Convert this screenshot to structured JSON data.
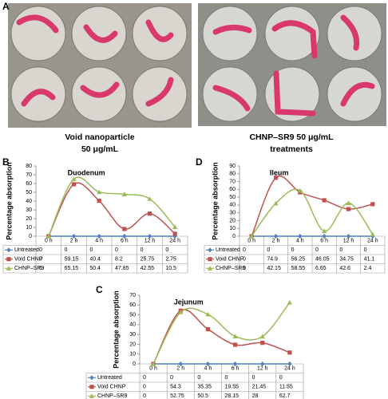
{
  "figure": {
    "panel_labels": [
      "A",
      "B",
      "C",
      "D"
    ],
    "captions": [
      [
        "Void nanoparticle",
        "50 μg/mL"
      ],
      [
        "CHNP–SR9 50 μg/mL",
        "treatments"
      ]
    ]
  },
  "chart_data": [
    {
      "type": "line",
      "title": "Duodenum",
      "y_label": "Percentage absorption",
      "categories": [
        "0 h",
        "2 h",
        "4 h",
        "6 h",
        "12 h",
        "24 h"
      ],
      "series": [
        {
          "name": "Untreated",
          "color": "#4f81bd",
          "marker": "diamond",
          "values": [
            0,
            0,
            0,
            0,
            0,
            0
          ]
        },
        {
          "name": "Void CHNP",
          "color": "#c0504d",
          "marker": "square",
          "values": [
            0,
            59.15,
            40.4,
            8.2,
            25.75,
            2.75
          ]
        },
        {
          "name": "CHNP–SR9",
          "color": "#9bbb59",
          "marker": "triangle",
          "values": [
            0,
            65.15,
            50.4,
            47.85,
            42.55,
            10.5
          ]
        }
      ],
      "ylim": [
        0,
        80
      ],
      "yticks": [
        0,
        10,
        20,
        30,
        40,
        50,
        60,
        70,
        80
      ]
    },
    {
      "type": "line",
      "title": "Ileum",
      "y_label": "Percentage absorption",
      "categories": [
        "0 h",
        "2 h",
        "4 h",
        "6 h",
        "12 h",
        "24 h"
      ],
      "series": [
        {
          "name": "Untreated",
          "color": "#4f81bd",
          "marker": "diamond",
          "values": [
            0,
            0,
            0,
            0,
            0,
            0
          ]
        },
        {
          "name": "Void CHNP",
          "color": "#c0504d",
          "marker": "square",
          "values": [
            0,
            74.9,
            56.25,
            46.05,
            34.75,
            41.1
          ]
        },
        {
          "name": "CHNP–SR9",
          "color": "#9bbb59",
          "marker": "triangle",
          "values": [
            0,
            42.15,
            58.55,
            6.65,
            42.6,
            2.4
          ]
        }
      ],
      "ylim": [
        0,
        90
      ],
      "yticks": [
        0,
        10,
        20,
        30,
        40,
        50,
        60,
        70,
        80,
        90
      ]
    },
    {
      "type": "line",
      "title": "Jejunum",
      "y_label": "Percentage absorption",
      "categories": [
        "0 h",
        "2 h",
        "4 h",
        "6 h",
        "12 h",
        "24 h"
      ],
      "series": [
        {
          "name": "Untreated",
          "color": "#4f81bd",
          "marker": "diamond",
          "values": [
            0,
            0,
            0,
            0,
            0,
            0
          ]
        },
        {
          "name": "Void CHNP",
          "color": "#c0504d",
          "marker": "square",
          "values": [
            0,
            54.3,
            35.35,
            19.55,
            21.45,
            11.55
          ]
        },
        {
          "name": "CHNP–SR9",
          "color": "#9bbb59",
          "marker": "triangle",
          "values": [
            0,
            52.75,
            50.5,
            28.15,
            28,
            62.7
          ]
        }
      ],
      "ylim": [
        0,
        70
      ],
      "yticks": [
        0,
        10,
        20,
        30,
        40,
        50,
        60,
        70
      ]
    }
  ]
}
